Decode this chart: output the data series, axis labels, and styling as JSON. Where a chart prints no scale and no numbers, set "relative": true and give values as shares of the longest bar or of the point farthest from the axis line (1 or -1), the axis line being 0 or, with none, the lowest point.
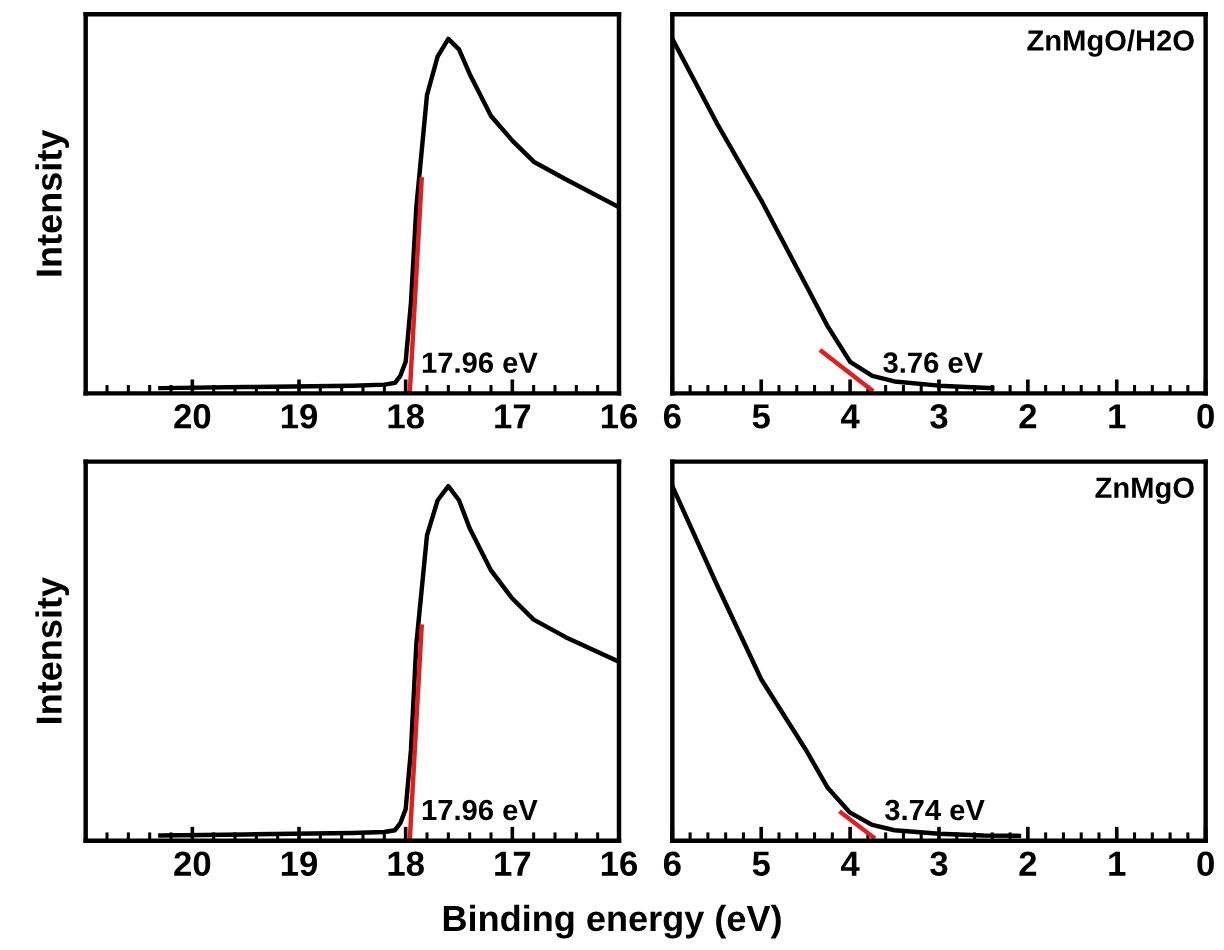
{
  "chart_data": [
    {
      "type": "line",
      "relative": true,
      "ylabel": "Intensity",
      "xlim": [
        21,
        16
      ],
      "xticks": [
        20,
        19,
        18,
        17,
        16
      ],
      "tick_labels": "x",
      "grid": false,
      "series": [
        {
          "color": "#000000",
          "x": [
            20.3,
            19.5,
            18.5,
            18.2,
            18.1,
            18.05,
            18.0,
            17.95,
            17.9,
            17.8,
            17.7,
            17.6,
            17.5,
            17.4,
            17.2,
            17.0,
            16.8,
            16.5,
            16.0
          ],
          "values": [
            0.005,
            0.008,
            0.012,
            0.015,
            0.02,
            0.04,
            0.08,
            0.25,
            0.52,
            0.84,
            0.95,
            1.0,
            0.97,
            0.9,
            0.78,
            0.71,
            0.65,
            0.6,
            0.52
          ]
        },
        {
          "color": "#e02020",
          "x": [
            17.96,
            17.85
          ],
          "values": [
            0,
            0.6
          ]
        }
      ],
      "annotations": [
        {
          "text": "17.96 eV",
          "x": 17.96,
          "y": 0
        }
      ]
    },
    {
      "type": "line",
      "relative": true,
      "xlim": [
        6,
        0
      ],
      "xticks": [
        6,
        5,
        4,
        3,
        2,
        1,
        0
      ],
      "tick_labels": "x",
      "grid": false,
      "series": [
        {
          "color": "#000000",
          "x": [
            6,
            5.5,
            5,
            4.5,
            4.25,
            4.0,
            3.75,
            3.5,
            3.0,
            2.5,
            2.4
          ],
          "values": [
            1,
            0.76,
            0.54,
            0.3,
            0.18,
            0.08,
            0.04,
            0.024,
            0.012,
            0.006,
            0.005
          ]
        },
        {
          "color": "#e02020",
          "x": [
            4.32,
            3.76
          ],
          "values": [
            0.11,
            0
          ]
        }
      ],
      "annotations": [
        {
          "text": "3.76 eV",
          "x": 3.76,
          "y": 0
        },
        "ZnMgO/H2O"
      ]
    },
    {
      "type": "line",
      "relative": true,
      "ylabel": "Intensity",
      "xlim": [
        21,
        16
      ],
      "xticks": [
        20,
        19,
        18,
        17,
        16
      ],
      "tick_labels": "x",
      "grid": false,
      "series": [
        {
          "color": "#000000",
          "x": [
            20.3,
            19.5,
            18.5,
            18.2,
            18.1,
            18.05,
            18.0,
            17.95,
            17.9,
            17.8,
            17.7,
            17.6,
            17.5,
            17.4,
            17.2,
            17.0,
            16.8,
            16.5,
            16.0
          ],
          "values": [
            0.005,
            0.008,
            0.012,
            0.015,
            0.02,
            0.04,
            0.08,
            0.25,
            0.55,
            0.86,
            0.96,
            1.0,
            0.96,
            0.88,
            0.76,
            0.68,
            0.62,
            0.57,
            0.5
          ]
        },
        {
          "color": "#e02020",
          "x": [
            17.96,
            17.85
          ],
          "values": [
            0,
            0.6
          ]
        }
      ],
      "annotations": [
        {
          "text": "17.96 eV",
          "x": 17.96,
          "y": 0
        }
      ]
    },
    {
      "type": "line",
      "relative": true,
      "xlabel": "Binding energy (eV)",
      "xlim": [
        6,
        0
      ],
      "xticks": [
        6,
        5,
        4,
        3,
        2,
        1,
        0
      ],
      "tick_labels": "x",
      "grid": false,
      "series": [
        {
          "color": "#000000",
          "x": [
            6,
            5.5,
            5,
            4.5,
            4.25,
            4.0,
            3.75,
            3.5,
            3.0,
            2.5,
            2.1
          ],
          "values": [
            1,
            0.72,
            0.45,
            0.25,
            0.14,
            0.07,
            0.035,
            0.02,
            0.01,
            0.005,
            0.004
          ]
        },
        {
          "color": "#e02020",
          "x": [
            4.1,
            3.74
          ],
          "values": [
            0.07,
            0
          ]
        }
      ],
      "annotations": [
        {
          "text": "3.74 eV",
          "x": 3.74,
          "y": 0
        },
        "ZnMgO"
      ]
    }
  ]
}
